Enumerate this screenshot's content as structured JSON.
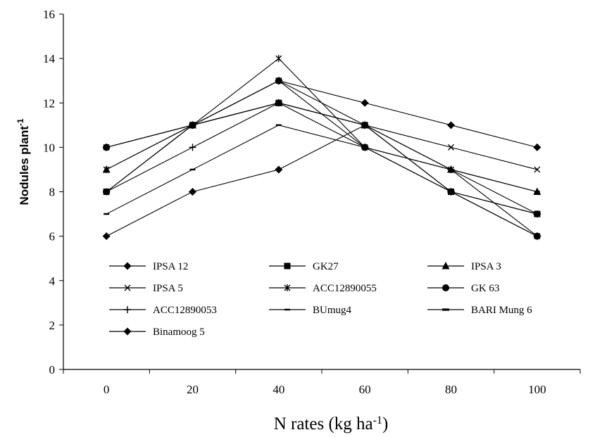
{
  "chart_data": {
    "type": "line",
    "x": [
      0,
      20,
      40,
      60,
      80,
      100
    ],
    "xlabel_main": "N rates (kg ha",
    "xlabel_sup": "-1",
    "xlabel_tail": ")",
    "ylabel_main": "Nodules plant",
    "ylabel_sup": "-1",
    "ylim": [
      0,
      16
    ],
    "yticks": [
      0,
      2,
      4,
      6,
      8,
      10,
      12,
      14,
      16
    ],
    "grid": false,
    "legend": "inside-bottom-left",
    "series": [
      {
        "name": "IPSA 12",
        "marker": "diamond",
        "values": [
          10,
          11,
          13,
          12,
          11,
          10
        ]
      },
      {
        "name": "GK27",
        "marker": "square",
        "values": [
          8,
          11,
          12,
          11,
          8,
          7
        ]
      },
      {
        "name": "IPSA 3",
        "marker": "triangle",
        "values": [
          9,
          11,
          12,
          11,
          9,
          8
        ]
      },
      {
        "name": "IPSA 5",
        "marker": "x",
        "values": [
          10,
          11,
          13,
          11,
          10,
          9
        ]
      },
      {
        "name": "ACC12890055",
        "marker": "star",
        "values": [
          9,
          11,
          14,
          10,
          9,
          6
        ]
      },
      {
        "name": "GK 63",
        "marker": "circle",
        "values": [
          10,
          11,
          13,
          10,
          8,
          6
        ]
      },
      {
        "name": "ACC12890053",
        "marker": "plus",
        "values": [
          8,
          10,
          12,
          11,
          9,
          7
        ]
      },
      {
        "name": "BUmug4",
        "marker": "dash",
        "values": [
          7,
          9,
          11,
          10,
          9,
          8
        ]
      },
      {
        "name": "BARI Mung 6",
        "marker": "dash-bold",
        "values": [
          8,
          11,
          12,
          10,
          8,
          7
        ]
      },
      {
        "name": "Binamoog 5",
        "marker": "diamond",
        "values": [
          6,
          8,
          9,
          11,
          8,
          6
        ]
      }
    ]
  }
}
